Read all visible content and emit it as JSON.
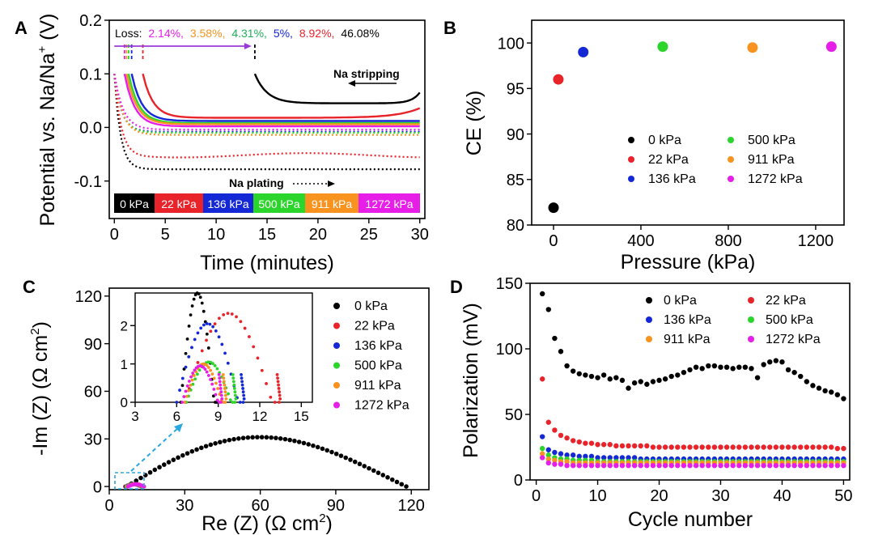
{
  "palette": {
    "c0": "#000000",
    "c22": "#e8232a",
    "c136": "#1428d6",
    "c500": "#2bd52b",
    "c911": "#f7931e",
    "c1272": "#e71ee7",
    "purple": "#9a3bd8",
    "cyan": "#2aa7e0"
  },
  "chart_data": [
    {
      "panel": "A",
      "type": "line",
      "xlabel": "Time (minutes)",
      "ylabel_main": "Potential vs. Na/Na",
      "ylabel_sup": "+",
      "ylabel_unit": " (V)",
      "xlim": [
        -0.5,
        30.5
      ],
      "ylim": [
        -0.17,
        0.2
      ],
      "xticks": [
        0,
        5,
        10,
        15,
        20,
        25,
        30
      ],
      "yticks": [
        -0.1,
        0.0,
        0.1,
        0.2
      ],
      "ytick_labels": [
        "-0.1",
        "0.0",
        "0.1",
        "0.2"
      ],
      "loss_prefix": "Loss:",
      "loss_values": [
        "2.14%,",
        "3.58%,",
        "4.31%,",
        "5%,",
        "8.92%,",
        "46.08%"
      ],
      "annotation_stripping": "Na stripping",
      "annotation_plating": "Na plating",
      "legend_boxes": [
        "0 kPa",
        "22 kPa",
        "136 kPa",
        "500 kPa",
        "911 kPa",
        "1272 kPa"
      ],
      "series": [
        {
          "name": "0 kPa",
          "end_time": 13.8,
          "strip_level": 0.045,
          "plate_level": -0.078
        },
        {
          "name": "22 kPa",
          "end_time": 2.8,
          "strip_level": 0.018,
          "plate_level": -0.052
        },
        {
          "name": "136 kPa",
          "end_time": 1.7,
          "strip_level": 0.012,
          "plate_level": -0.008
        },
        {
          "name": "500 kPa",
          "end_time": 1.4,
          "strip_level": 0.008,
          "plate_level": -0.01
        },
        {
          "name": "911 kPa",
          "end_time": 1.2,
          "strip_level": 0.006,
          "plate_level": -0.014
        },
        {
          "name": "1272 kPa",
          "end_time": 1.0,
          "strip_level": 0.002,
          "plate_level": -0.004
        }
      ]
    },
    {
      "panel": "B",
      "type": "scatter",
      "xlabel": "Pressure (kPa)",
      "ylabel": "CE (%)",
      "xlim": [
        -100,
        1330
      ],
      "ylim": [
        80,
        102.5
      ],
      "xticks": [
        0,
        400,
        800,
        1200
      ],
      "yticks": [
        80,
        85,
        90,
        95,
        100
      ],
      "legend": [
        "0 kPa",
        "22 kPa",
        "136 kPa",
        "500 kPa",
        "911 kPa",
        "1272 kPa"
      ],
      "x": [
        0,
        22,
        136,
        500,
        911,
        1272
      ],
      "y": [
        81.9,
        96.0,
        99.0,
        99.6,
        99.5,
        99.6
      ]
    },
    {
      "panel": "C",
      "type": "scatter",
      "xlabel_main": "Re (Z) (Ω cm",
      "xlabel_sup": "2",
      "xlabel_end": ")",
      "ylabel_main": "-Im (Z) (Ω cm",
      "ylabel_sup": "2",
      "ylabel_end": ")",
      "xlim": [
        0,
        127
      ],
      "ylim": [
        -2,
        125
      ],
      "xticks": [
        0,
        30,
        60,
        90,
        120
      ],
      "yticks": [
        0,
        30,
        60,
        90,
        120
      ],
      "legend": [
        "0 kPa",
        "22 kPa",
        "136 kPa",
        "500 kPa",
        "911 kPa",
        "1272 kPa"
      ],
      "arc_0kPa": {
        "start": 7,
        "end": 118,
        "peak_im": 31,
        "peak_re": 65
      },
      "inset": {
        "xlim": [
          3,
          15.8
        ],
        "ylim": [
          0,
          2.85
        ],
        "xticks": [
          3,
          6,
          9,
          12,
          15
        ],
        "yticks": [
          0,
          1,
          2
        ],
        "arcs": [
          {
            "name": "0 kPa",
            "r0": 6.3,
            "r1": 8.9,
            "peak": 2.85
          },
          {
            "name": "22 kPa",
            "r0": 6.6,
            "r1": 13.4,
            "peak": 2.32
          },
          {
            "name": "136 kPa",
            "r0": 6.0,
            "r1": 10.8,
            "peak": 2.05
          },
          {
            "name": "500 kPa",
            "r0": 6.7,
            "r1": 10.2,
            "peak": 1.05
          },
          {
            "name": "911 kPa",
            "r0": 6.6,
            "r1": 9.5,
            "peak": 1.0
          },
          {
            "name": "1272 kPa",
            "r0": 6.4,
            "r1": 9.2,
            "peak": 0.95
          }
        ]
      }
    },
    {
      "panel": "D",
      "type": "scatter",
      "xlabel": "Cycle number",
      "ylabel": "Polarization (mV)",
      "xlim": [
        -1,
        51
      ],
      "ylim": [
        0,
        150
      ],
      "xticks": [
        0,
        10,
        20,
        30,
        40,
        50
      ],
      "yticks": [
        0,
        50,
        100,
        150
      ],
      "legend": [
        "0 kPa",
        "22 kPa",
        "136 kPa",
        "500 kPa",
        "911 kPa",
        "1272 kPa"
      ],
      "series": [
        {
          "name": "0 kPa",
          "values": [
            142,
            130,
            108,
            98,
            87,
            83,
            81,
            80,
            79,
            78,
            80,
            77,
            78,
            76,
            70,
            74,
            75,
            73,
            75,
            76,
            77,
            79,
            80,
            82,
            84,
            86,
            85,
            87,
            87,
            86,
            86,
            85,
            86,
            86,
            85,
            78,
            88,
            90,
            91,
            90,
            84,
            82,
            79,
            75,
            72,
            70,
            68,
            67,
            65,
            62
          ]
        },
        {
          "name": "22 kPa",
          "values": [
            77,
            44,
            38,
            34,
            32,
            30,
            29,
            28,
            28,
            27,
            27,
            27,
            26,
            26,
            26,
            26,
            26,
            26,
            25,
            25,
            25,
            25,
            25,
            25,
            25,
            25,
            25,
            25,
            25,
            25,
            25,
            25,
            25,
            25,
            25,
            25,
            25,
            25,
            25,
            25,
            25,
            25,
            25,
            25,
            25,
            25,
            25,
            25,
            24,
            24
          ]
        },
        {
          "name": "136 kPa",
          "values": [
            33,
            23,
            21,
            20,
            19,
            19,
            18,
            18,
            18,
            17,
            17,
            17,
            17,
            17,
            17,
            17,
            16,
            16,
            16,
            16,
            16,
            16,
            16,
            16,
            16,
            16,
            16,
            16,
            16,
            16,
            16,
            16,
            16,
            16,
            16,
            16,
            16,
            16,
            16,
            16,
            16,
            16,
            16,
            16,
            16,
            16,
            16,
            16,
            16,
            16
          ]
        },
        {
          "name": "500 kPa",
          "values": [
            24,
            19,
            17,
            16,
            16,
            15,
            15,
            15,
            15,
            14,
            14,
            14,
            14,
            14,
            14,
            14,
            14,
            14,
            14,
            14,
            14,
            14,
            14,
            14,
            14,
            14,
            14,
            14,
            14,
            14,
            14,
            14,
            14,
            14,
            14,
            14,
            14,
            14,
            14,
            14,
            14,
            14,
            14,
            14,
            14,
            14,
            14,
            14,
            14,
            14
          ]
        },
        {
          "name": "911 kPa",
          "values": [
            20,
            16,
            15,
            14,
            14,
            13,
            13,
            13,
            13,
            13,
            13,
            13,
            13,
            13,
            13,
            13,
            13,
            13,
            13,
            13,
            13,
            13,
            13,
            13,
            13,
            13,
            13,
            13,
            13,
            13,
            13,
            13,
            13,
            13,
            13,
            13,
            13,
            13,
            13,
            13,
            13,
            13,
            13,
            13,
            13,
            13,
            13,
            13,
            13,
            13
          ]
        },
        {
          "name": "1272 kPa",
          "values": [
            17,
            13,
            12,
            12,
            11,
            11,
            11,
            11,
            11,
            11,
            11,
            11,
            11,
            11,
            11,
            11,
            11,
            11,
            11,
            11,
            11,
            11,
            11,
            11,
            11,
            11,
            11,
            11,
            11,
            11,
            11,
            11,
            11,
            11,
            11,
            11,
            11,
            11,
            11,
            11,
            11,
            11,
            11,
            11,
            11,
            11,
            11,
            11,
            11,
            11
          ]
        }
      ]
    }
  ]
}
